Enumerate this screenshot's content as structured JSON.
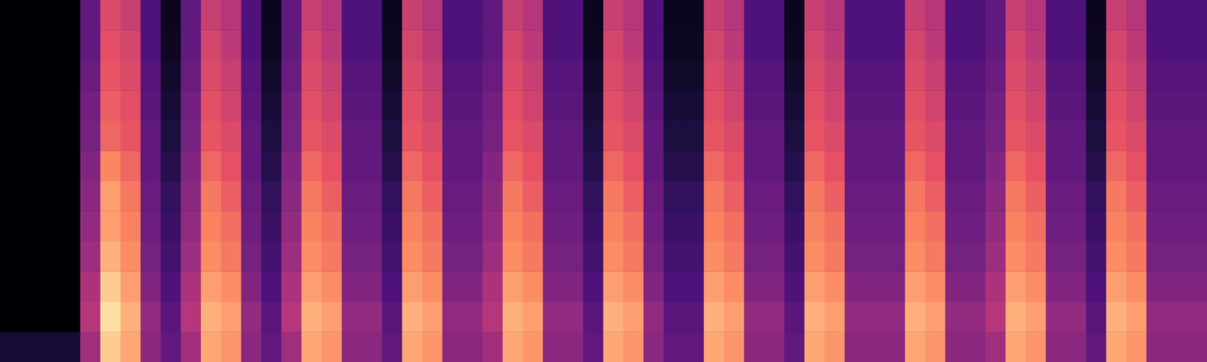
{
  "chart_data": {
    "type": "heatmap",
    "color": "magma",
    "tick_labels": false,
    "grid": false,
    "cells": [
      [
        0,
        0,
        0,
        0,
        0.3,
        0.6,
        0.55,
        0.25,
        0.05,
        0.3,
        0.55,
        0.5,
        0.25,
        0.05,
        0.3,
        0.55,
        0.5,
        0.25,
        0.25,
        0.05,
        0.55,
        0.5,
        0.25,
        0.25,
        0.3,
        0.55,
        0.5,
        0.25,
        0.25,
        0.05,
        0.55,
        0.5,
        0.25,
        0.05,
        0.05,
        0.55,
        0.5,
        0.25,
        0.25,
        0.05,
        0.55,
        0.5,
        0.25,
        0.25,
        0.25,
        0.55,
        0.5,
        0.25,
        0.25,
        0.3,
        0.55,
        0.5,
        0.25,
        0.25,
        0.05,
        0.55,
        0.5,
        0.25,
        0.25,
        0.25
      ],
      [
        0,
        0,
        0,
        0,
        0.3,
        0.62,
        0.58,
        0.25,
        0.06,
        0.3,
        0.58,
        0.52,
        0.25,
        0.06,
        0.3,
        0.58,
        0.52,
        0.25,
        0.25,
        0.06,
        0.58,
        0.52,
        0.25,
        0.25,
        0.3,
        0.58,
        0.52,
        0.25,
        0.25,
        0.06,
        0.58,
        0.52,
        0.25,
        0.06,
        0.06,
        0.58,
        0.52,
        0.25,
        0.25,
        0.06,
        0.58,
        0.52,
        0.25,
        0.25,
        0.25,
        0.58,
        0.52,
        0.25,
        0.25,
        0.3,
        0.58,
        0.52,
        0.25,
        0.25,
        0.06,
        0.58,
        0.52,
        0.25,
        0.25,
        0.25
      ],
      [
        0,
        0,
        0,
        0,
        0.32,
        0.64,
        0.6,
        0.27,
        0.08,
        0.32,
        0.6,
        0.55,
        0.27,
        0.08,
        0.32,
        0.6,
        0.55,
        0.27,
        0.27,
        0.08,
        0.6,
        0.55,
        0.27,
        0.27,
        0.32,
        0.6,
        0.55,
        0.27,
        0.27,
        0.08,
        0.6,
        0.55,
        0.27,
        0.08,
        0.08,
        0.6,
        0.55,
        0.27,
        0.27,
        0.08,
        0.6,
        0.55,
        0.27,
        0.27,
        0.27,
        0.6,
        0.55,
        0.27,
        0.27,
        0.32,
        0.6,
        0.55,
        0.27,
        0.27,
        0.08,
        0.6,
        0.55,
        0.27,
        0.27,
        0.27
      ],
      [
        0,
        0,
        0,
        0,
        0.34,
        0.66,
        0.62,
        0.28,
        0.1,
        0.34,
        0.62,
        0.57,
        0.28,
        0.1,
        0.34,
        0.62,
        0.57,
        0.28,
        0.28,
        0.1,
        0.62,
        0.57,
        0.28,
        0.28,
        0.34,
        0.62,
        0.57,
        0.28,
        0.28,
        0.1,
        0.62,
        0.57,
        0.28,
        0.1,
        0.1,
        0.62,
        0.57,
        0.28,
        0.28,
        0.1,
        0.62,
        0.57,
        0.28,
        0.28,
        0.28,
        0.62,
        0.57,
        0.28,
        0.28,
        0.34,
        0.62,
        0.57,
        0.28,
        0.28,
        0.1,
        0.62,
        0.57,
        0.28,
        0.28,
        0.28
      ],
      [
        0,
        0,
        0,
        0,
        0.35,
        0.68,
        0.64,
        0.3,
        0.12,
        0.35,
        0.64,
        0.6,
        0.3,
        0.12,
        0.35,
        0.64,
        0.6,
        0.3,
        0.3,
        0.12,
        0.64,
        0.6,
        0.3,
        0.3,
        0.35,
        0.64,
        0.6,
        0.3,
        0.3,
        0.12,
        0.64,
        0.6,
        0.3,
        0.12,
        0.12,
        0.64,
        0.6,
        0.3,
        0.3,
        0.12,
        0.64,
        0.6,
        0.3,
        0.3,
        0.3,
        0.64,
        0.6,
        0.3,
        0.3,
        0.35,
        0.64,
        0.6,
        0.3,
        0.3,
        0.12,
        0.64,
        0.6,
        0.3,
        0.3,
        0.3
      ],
      [
        0,
        0,
        0,
        0,
        0.38,
        0.75,
        0.68,
        0.3,
        0.15,
        0.38,
        0.68,
        0.63,
        0.3,
        0.15,
        0.38,
        0.68,
        0.63,
        0.3,
        0.3,
        0.15,
        0.68,
        0.63,
        0.3,
        0.3,
        0.38,
        0.68,
        0.63,
        0.3,
        0.3,
        0.15,
        0.68,
        0.63,
        0.3,
        0.15,
        0.15,
        0.68,
        0.63,
        0.3,
        0.3,
        0.15,
        0.68,
        0.63,
        0.3,
        0.3,
        0.3,
        0.68,
        0.63,
        0.3,
        0.3,
        0.38,
        0.68,
        0.63,
        0.3,
        0.3,
        0.15,
        0.68,
        0.63,
        0.3,
        0.3,
        0.3
      ],
      [
        0,
        0,
        0,
        0,
        0.4,
        0.8,
        0.72,
        0.32,
        0.18,
        0.4,
        0.72,
        0.66,
        0.32,
        0.18,
        0.4,
        0.72,
        0.66,
        0.32,
        0.32,
        0.18,
        0.72,
        0.66,
        0.32,
        0.32,
        0.4,
        0.72,
        0.66,
        0.32,
        0.32,
        0.18,
        0.72,
        0.66,
        0.32,
        0.18,
        0.18,
        0.72,
        0.66,
        0.32,
        0.32,
        0.18,
        0.72,
        0.66,
        0.32,
        0.32,
        0.32,
        0.72,
        0.66,
        0.32,
        0.32,
        0.4,
        0.72,
        0.66,
        0.32,
        0.32,
        0.18,
        0.72,
        0.66,
        0.32,
        0.32,
        0.32
      ],
      [
        0,
        0,
        0,
        0,
        0.42,
        0.8,
        0.74,
        0.33,
        0.2,
        0.42,
        0.74,
        0.7,
        0.33,
        0.2,
        0.42,
        0.74,
        0.7,
        0.33,
        0.33,
        0.2,
        0.74,
        0.7,
        0.33,
        0.33,
        0.42,
        0.74,
        0.7,
        0.33,
        0.33,
        0.2,
        0.74,
        0.7,
        0.33,
        0.2,
        0.2,
        0.74,
        0.7,
        0.33,
        0.33,
        0.2,
        0.74,
        0.7,
        0.33,
        0.33,
        0.33,
        0.74,
        0.7,
        0.33,
        0.33,
        0.42,
        0.74,
        0.7,
        0.33,
        0.33,
        0.2,
        0.74,
        0.7,
        0.33,
        0.33,
        0.33
      ],
      [
        0,
        0,
        0,
        0,
        0.44,
        0.84,
        0.76,
        0.35,
        0.22,
        0.44,
        0.76,
        0.72,
        0.35,
        0.22,
        0.44,
        0.76,
        0.72,
        0.35,
        0.35,
        0.22,
        0.76,
        0.72,
        0.35,
        0.35,
        0.44,
        0.76,
        0.72,
        0.35,
        0.35,
        0.22,
        0.76,
        0.72,
        0.35,
        0.22,
        0.22,
        0.76,
        0.72,
        0.35,
        0.35,
        0.22,
        0.76,
        0.72,
        0.35,
        0.35,
        0.35,
        0.76,
        0.72,
        0.35,
        0.35,
        0.44,
        0.76,
        0.72,
        0.35,
        0.35,
        0.22,
        0.76,
        0.72,
        0.35,
        0.35,
        0.35
      ],
      [
        0,
        0,
        0,
        0,
        0.48,
        0.9,
        0.8,
        0.38,
        0.25,
        0.48,
        0.8,
        0.76,
        0.38,
        0.25,
        0.48,
        0.8,
        0.76,
        0.38,
        0.38,
        0.25,
        0.8,
        0.76,
        0.38,
        0.38,
        0.48,
        0.8,
        0.76,
        0.38,
        0.38,
        0.25,
        0.8,
        0.76,
        0.38,
        0.25,
        0.25,
        0.8,
        0.76,
        0.38,
        0.38,
        0.25,
        0.8,
        0.76,
        0.38,
        0.38,
        0.38,
        0.8,
        0.76,
        0.38,
        0.38,
        0.48,
        0.8,
        0.76,
        0.38,
        0.38,
        0.25,
        0.8,
        0.76,
        0.38,
        0.38,
        0.38
      ],
      [
        0,
        0,
        0,
        0,
        0.5,
        0.94,
        0.84,
        0.42,
        0.28,
        0.5,
        0.84,
        0.8,
        0.42,
        0.28,
        0.5,
        0.84,
        0.8,
        0.42,
        0.42,
        0.28,
        0.84,
        0.8,
        0.42,
        0.42,
        0.5,
        0.84,
        0.8,
        0.42,
        0.42,
        0.28,
        0.84,
        0.8,
        0.42,
        0.28,
        0.28,
        0.84,
        0.8,
        0.42,
        0.42,
        0.28,
        0.84,
        0.8,
        0.42,
        0.42,
        0.42,
        0.84,
        0.8,
        0.42,
        0.42,
        0.5,
        0.84,
        0.8,
        0.42,
        0.42,
        0.28,
        0.84,
        0.8,
        0.42,
        0.42,
        0.42
      ],
      [
        0.1,
        0.1,
        0.1,
        0.1,
        0.45,
        0.9,
        0.82,
        0.4,
        0.3,
        0.45,
        0.82,
        0.78,
        0.4,
        0.3,
        0.45,
        0.82,
        0.78,
        0.4,
        0.4,
        0.3,
        0.82,
        0.78,
        0.4,
        0.4,
        0.45,
        0.82,
        0.78,
        0.4,
        0.4,
        0.3,
        0.82,
        0.78,
        0.4,
        0.3,
        0.3,
        0.82,
        0.78,
        0.4,
        0.4,
        0.3,
        0.82,
        0.78,
        0.4,
        0.4,
        0.4,
        0.82,
        0.78,
        0.4,
        0.4,
        0.45,
        0.82,
        0.78,
        0.4,
        0.4,
        0.3,
        0.82,
        0.78,
        0.4,
        0.4,
        0.4
      ]
    ]
  }
}
